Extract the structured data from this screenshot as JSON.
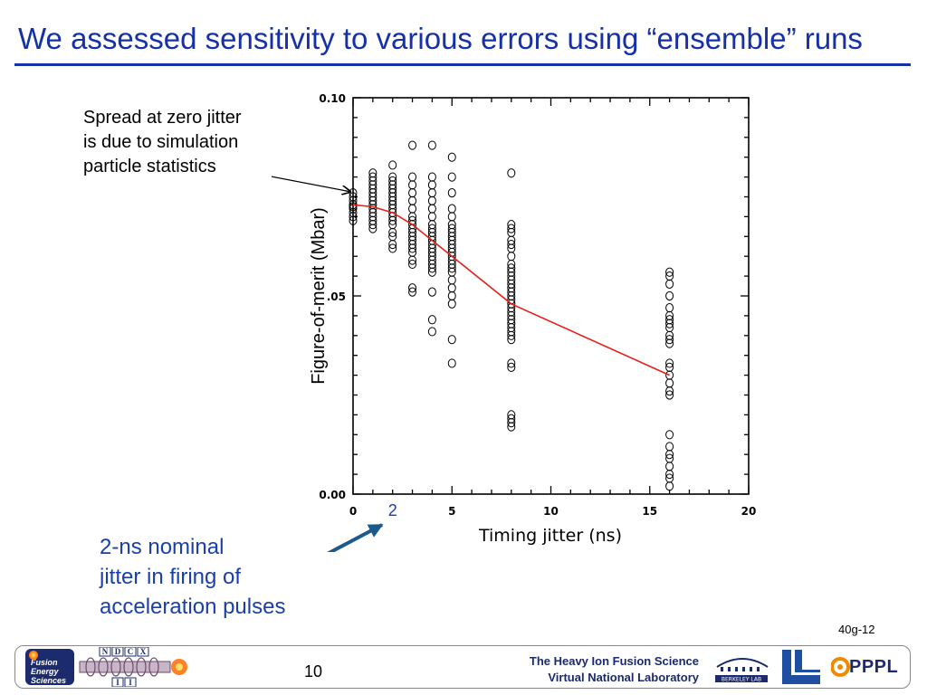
{
  "slide": {
    "title": "We assessed sensitivity to various errors using “ensemble” runs",
    "annotation_spread": "Spread at zero jitter\nis due to simulation\nparticle statistics",
    "annotation_nominal": "2-ns nominal\njitter in firing of\nacceleration pulses",
    "slide_id": "40g-12",
    "page_number": "10",
    "footer_lab": "The Heavy Ion Fusion Science\nVirtual National Laboratory",
    "logo_fes_text": "Fusion\nEnergy\nSciences",
    "logo_ndcx_letters": [
      "N",
      "D",
      "C",
      "X",
      "I",
      "I"
    ],
    "logo_pppl_text": "PPPL",
    "logo_berkeley_text": "BERKELEY LAB",
    "colors": {
      "title": "#1530a8",
      "mean_line": "#e8201a",
      "nominal_arrow": "#1c5a8c",
      "highlight_tick": "#1a3faa"
    }
  },
  "chart_data": {
    "type": "scatter",
    "xlabel": "Timing jitter (ns)",
    "ylabel": "Figure-of-merit (Mbar)",
    "xlim": [
      0,
      20
    ],
    "ylim": [
      0,
      0.1
    ],
    "x_ticks": [
      0,
      5,
      10,
      15,
      20
    ],
    "x_tick_labels": [
      "0",
      "5",
      "10",
      "15",
      "20"
    ],
    "y_ticks": [
      0,
      0.05,
      0.1
    ],
    "y_tick_labels": [
      "0.00",
      ".05",
      "0.10"
    ],
    "highlight_tick": {
      "x": 2,
      "label": "2"
    },
    "series": [
      {
        "groups": [
          {
            "x": 0,
            "y": [
              0.069,
              0.07,
              0.071,
              0.072,
              0.0725,
              0.073,
              0.074,
              0.075,
              0.076
            ]
          },
          {
            "x": 1,
            "y": [
              0.067,
              0.068,
              0.069,
              0.07,
              0.071,
              0.072,
              0.073,
              0.074,
              0.075,
              0.076,
              0.077,
              0.078,
              0.079,
              0.08,
              0.081
            ]
          },
          {
            "x": 2,
            "y": [
              0.062,
              0.063,
              0.065,
              0.066,
              0.068,
              0.069,
              0.07,
              0.071,
              0.072,
              0.073,
              0.074,
              0.075,
              0.076,
              0.077,
              0.078,
              0.079,
              0.08,
              0.083
            ]
          },
          {
            "x": 3,
            "y": [
              0.051,
              0.052,
              0.058,
              0.059,
              0.061,
              0.062,
              0.063,
              0.064,
              0.065,
              0.066,
              0.067,
              0.068,
              0.069,
              0.07,
              0.072,
              0.074,
              0.076,
              0.078,
              0.08,
              0.088
            ]
          },
          {
            "x": 4,
            "y": [
              0.041,
              0.044,
              0.051,
              0.056,
              0.057,
              0.058,
              0.059,
              0.06,
              0.061,
              0.062,
              0.063,
              0.064,
              0.065,
              0.066,
              0.067,
              0.068,
              0.07,
              0.072,
              0.074,
              0.076,
              0.078,
              0.08,
              0.088
            ]
          },
          {
            "x": 5,
            "y": [
              0.033,
              0.039,
              0.048,
              0.05,
              0.052,
              0.054,
              0.056,
              0.057,
              0.058,
              0.059,
              0.06,
              0.061,
              0.062,
              0.063,
              0.064,
              0.065,
              0.066,
              0.067,
              0.068,
              0.07,
              0.072,
              0.076,
              0.08,
              0.085
            ]
          },
          {
            "x": 8,
            "y": [
              0.017,
              0.018,
              0.019,
              0.02,
              0.032,
              0.033,
              0.039,
              0.04,
              0.041,
              0.042,
              0.043,
              0.044,
              0.045,
              0.046,
              0.047,
              0.048,
              0.049,
              0.05,
              0.051,
              0.052,
              0.053,
              0.054,
              0.055,
              0.056,
              0.057,
              0.058,
              0.06,
              0.062,
              0.063,
              0.064,
              0.066,
              0.067,
              0.068,
              0.081
            ]
          },
          {
            "x": 16,
            "y": [
              0.002,
              0.004,
              0.005,
              0.007,
              0.009,
              0.01,
              0.012,
              0.015,
              0.025,
              0.026,
              0.028,
              0.03,
              0.032,
              0.033,
              0.038,
              0.039,
              0.04,
              0.042,
              0.043,
              0.044,
              0.045,
              0.047,
              0.05,
              0.053,
              0.055,
              0.056
            ]
          }
        ]
      },
      {
        "type": "line",
        "x": [
          0,
          1,
          2,
          3,
          4,
          5,
          8,
          16
        ],
        "y": [
          0.073,
          0.0725,
          0.071,
          0.068,
          0.064,
          0.06,
          0.048,
          0.03
        ]
      }
    ]
  }
}
